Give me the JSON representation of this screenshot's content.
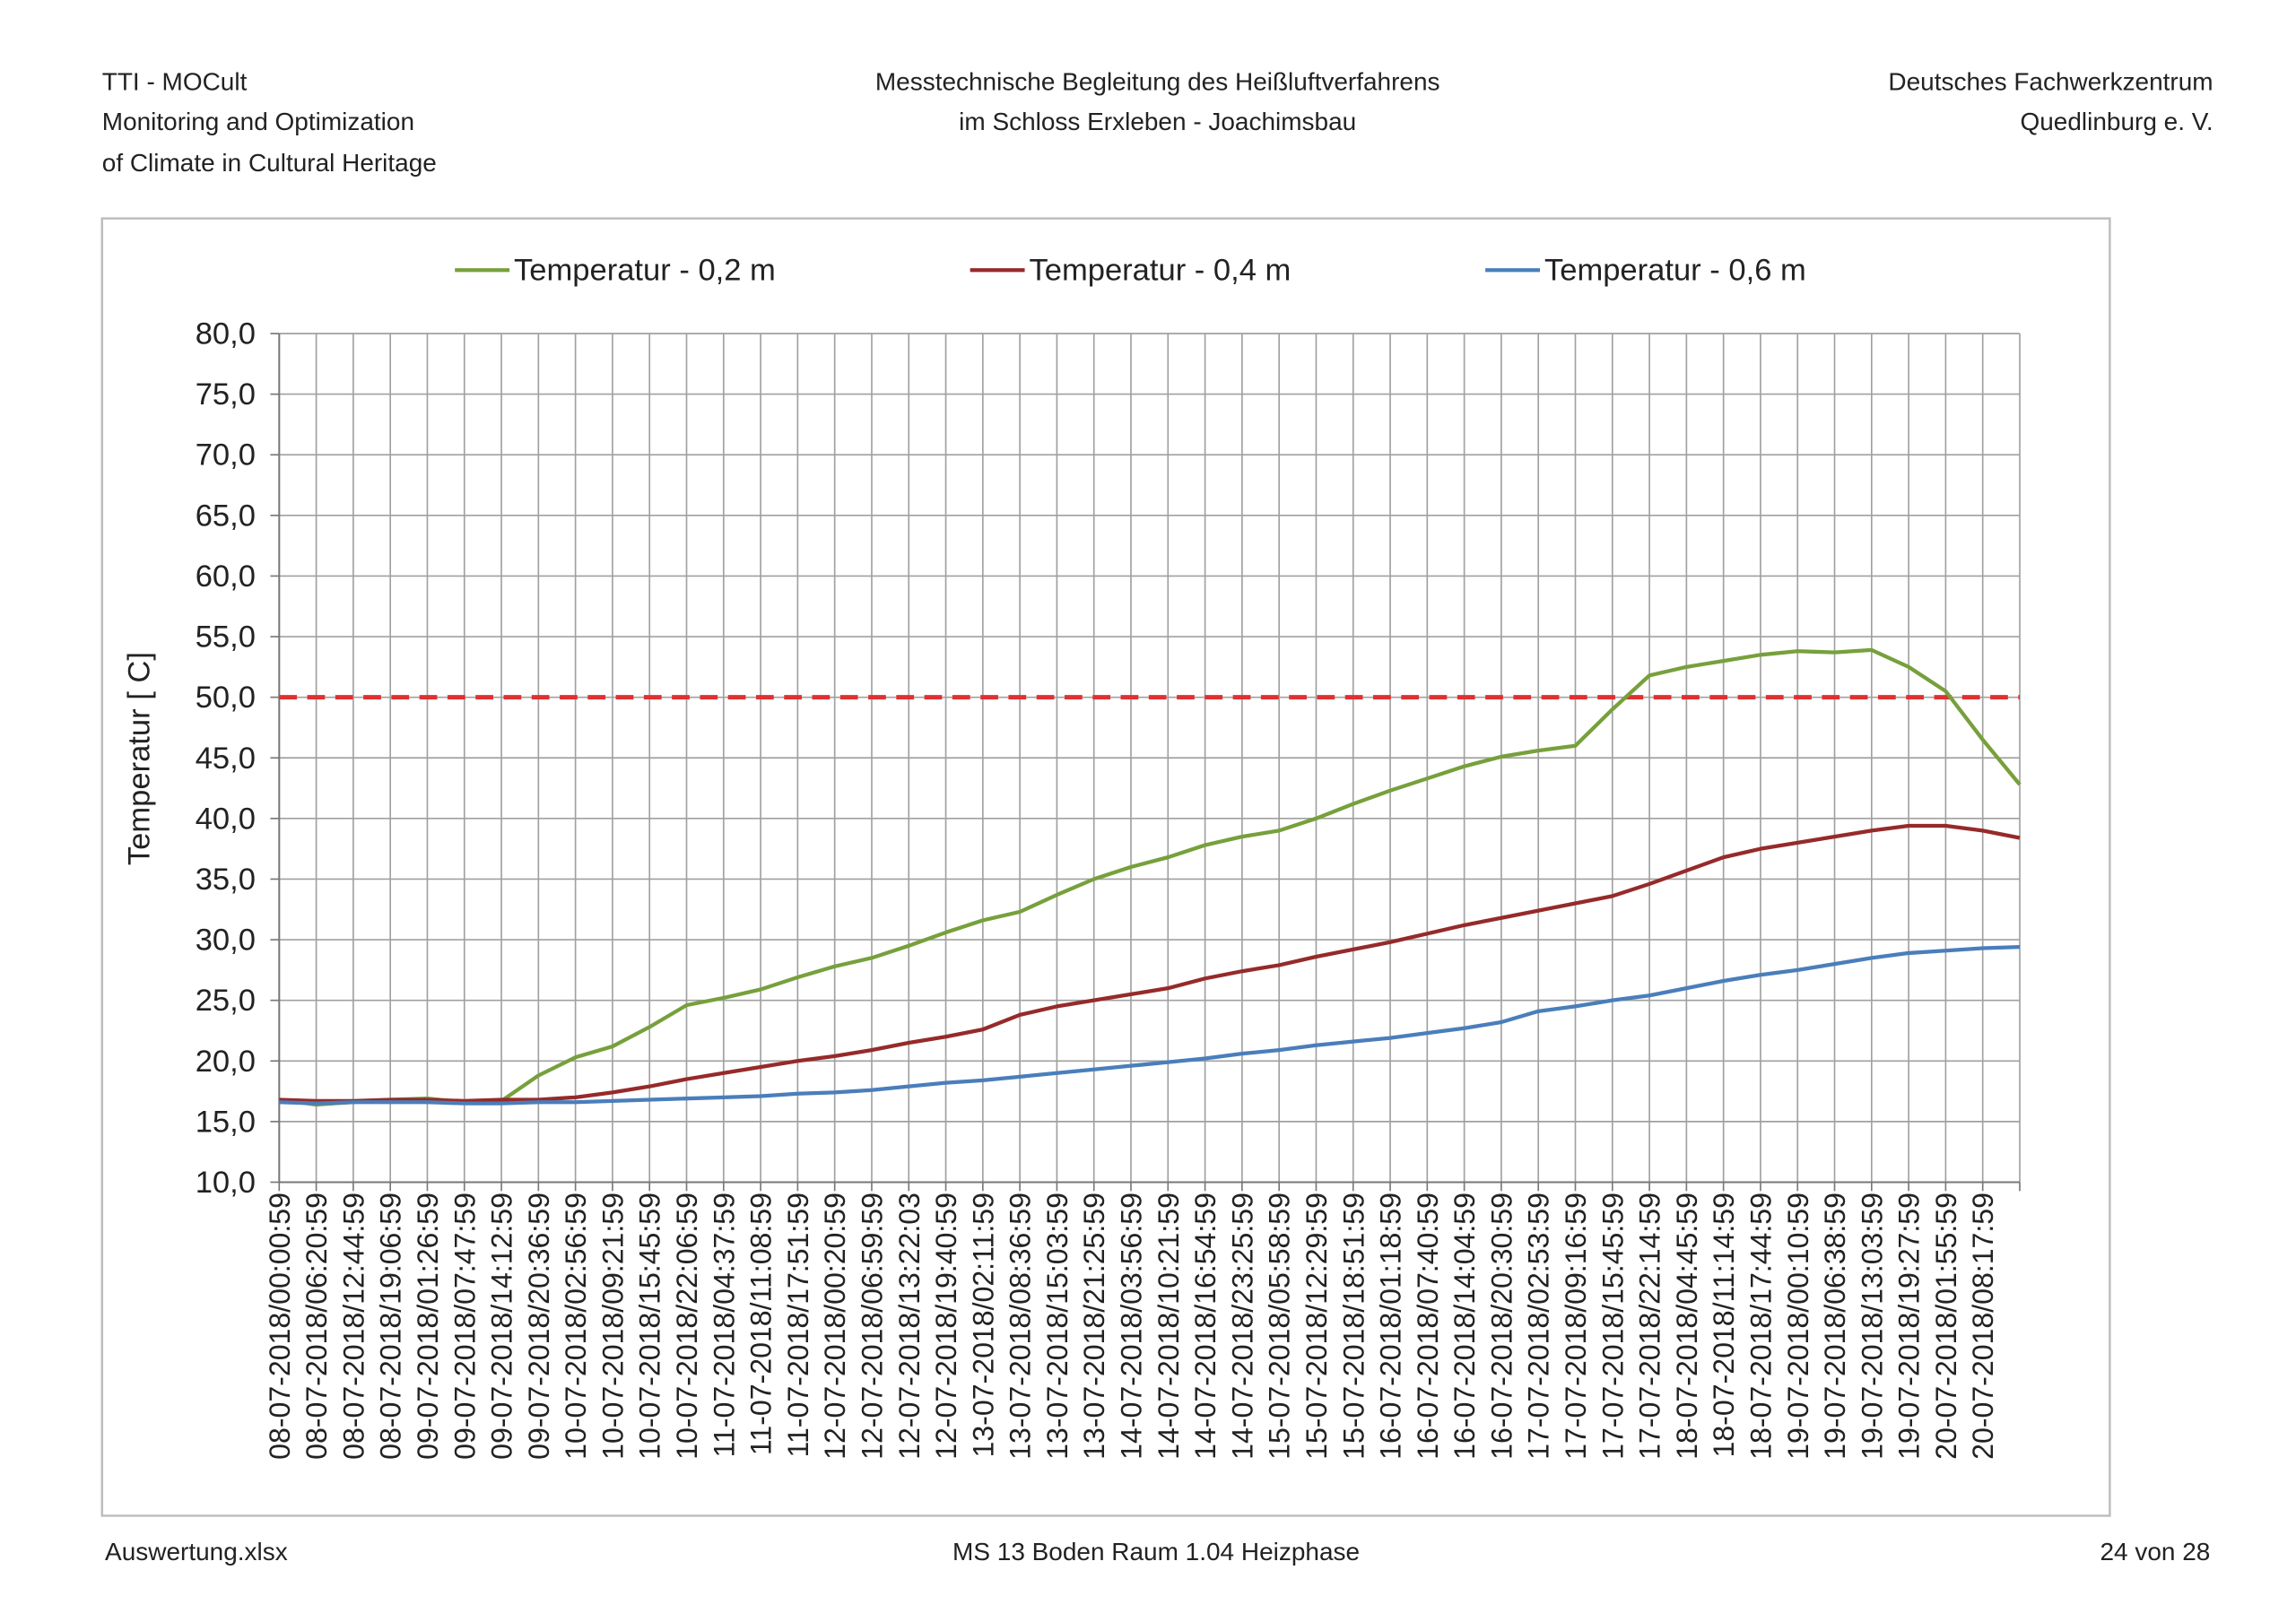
{
  "header": {
    "left": [
      "TTI - MOCult",
      "Monitoring and Optimization",
      "of Climate in Cultural Heritage"
    ],
    "center": [
      "Messtechnische Begleitung  des Heißluftverfahrens",
      "im Schloss Erxleben - Joachimsbau"
    ],
    "right": [
      "Deutsches Fachwerkzentrum",
      "Quedlinburg e. V."
    ]
  },
  "footer": {
    "left": "Auswertung.xlsx",
    "center": "MS 13 Boden Raum 1.04 Heizphase",
    "right": "24 von 28"
  },
  "chart_data": {
    "type": "line",
    "y_label": "Temperatur [ C]",
    "grid": true,
    "legend": "top",
    "categories": [
      "08-07-2018/00:00:59",
      "08-07-2018/06:20:59",
      "08-07-2018/12:44:59",
      "08-07-2018/19:06:59",
      "09-07-2018/01:26:59",
      "09-07-2018/07:47:59",
      "09-07-2018/14:12:59",
      "09-07-2018/20:36:59",
      "10-07-2018/02:56:59",
      "10-07-2018/09:21:59",
      "10-07-2018/15:45:59",
      "10-07-2018/22:06:59",
      "11-07-2018/04:37:59",
      "11-07-2018/11:08:59",
      "11-07-2018/17:51:59",
      "12-07-2018/00:20:59",
      "12-07-2018/06:59:59",
      "12-07-2018/13:22:03",
      "12-07-2018/19:40:59",
      "13-07-2018/02:11:59",
      "13-07-2018/08:36:59",
      "13-07-2018/15:03:59",
      "13-07-2018/21:25:59",
      "14-07-2018/03:56:59",
      "14-07-2018/10:21:59",
      "14-07-2018/16:54:59",
      "14-07-2018/23:25:59",
      "15-07-2018/05:58:59",
      "15-07-2018/12:29:59",
      "15-07-2018/18:51:59",
      "16-07-2018/01:18:59",
      "16-07-2018/07:40:59",
      "16-07-2018/14:04:59",
      "16-07-2018/20:30:59",
      "17-07-2018/02:53:59",
      "17-07-2018/09:16:59",
      "17-07-2018/15:45:59",
      "17-07-2018/22:14:59",
      "18-07-2018/04:45:59",
      "18-07-2018/11:14:59",
      "18-07-2018/17:44:59",
      "19-07-2018/00:10:59",
      "19-07-2018/06:38:59",
      "19-07-2018/13:03:59",
      "19-07-2018/19:27:59",
      "20-07-2018/01:55:59",
      "20-07-2018/08:17:59",
      null
    ],
    "series": [
      {
        "name": "Temperatur - 0,2 m",
        "color": "#77a03c",
        "values": [
          16.8,
          16.4,
          16.6,
          16.8,
          16.9,
          16.6,
          16.7,
          18.8,
          20.3,
          21.2,
          22.8,
          24.6,
          25.2,
          25.9,
          26.9,
          27.8,
          28.5,
          29.5,
          30.6,
          31.6,
          32.3,
          33.7,
          35.0,
          36.0,
          36.8,
          37.8,
          38.5,
          39.0,
          40.0,
          41.2,
          42.3,
          43.3,
          44.3,
          45.1,
          45.6,
          46.0,
          49.0,
          51.8,
          52.5,
          53.0,
          53.5,
          53.8,
          53.7,
          53.9,
          52.5,
          50.5,
          46.5,
          42.8
        ]
      },
      {
        "name": "Temperatur - 0,4 m",
        "color": "#962a2a",
        "values": [
          16.8,
          16.7,
          16.7,
          16.8,
          16.8,
          16.7,
          16.8,
          16.8,
          17.0,
          17.4,
          17.9,
          18.5,
          19.0,
          19.5,
          20.0,
          20.4,
          20.9,
          21.5,
          22.0,
          22.6,
          23.8,
          24.5,
          25.0,
          25.5,
          26.0,
          26.8,
          27.4,
          27.9,
          28.6,
          29.2,
          29.8,
          30.5,
          31.2,
          31.8,
          32.4,
          33.0,
          33.6,
          34.6,
          35.7,
          36.8,
          37.5,
          38.0,
          38.5,
          39.0,
          39.4,
          39.4,
          39.0,
          38.4
        ]
      },
      {
        "name": "Temperatur - 0,6 m",
        "color": "#4a7ebb",
        "values": [
          16.6,
          16.5,
          16.6,
          16.6,
          16.6,
          16.5,
          16.5,
          16.6,
          16.6,
          16.7,
          16.8,
          16.9,
          17.0,
          17.1,
          17.3,
          17.4,
          17.6,
          17.9,
          18.2,
          18.4,
          18.7,
          19.0,
          19.3,
          19.6,
          19.9,
          20.2,
          20.6,
          20.9,
          21.3,
          21.6,
          21.9,
          22.3,
          22.7,
          23.2,
          24.1,
          24.5,
          25.0,
          25.4,
          26.0,
          26.6,
          27.1,
          27.5,
          28.0,
          28.5,
          28.9,
          29.1,
          29.3,
          29.4
        ]
      }
    ],
    "reference_line": {
      "value": 50,
      "color": "#e03030"
    },
    "ylim": [
      10,
      80
    ],
    "yticks": [
      {
        "value": 10,
        "label": "10,0"
      },
      {
        "value": 15,
        "label": "15,0"
      },
      {
        "value": 20,
        "label": "20,0"
      },
      {
        "value": 25,
        "label": "25,0"
      },
      {
        "value": 30,
        "label": "30,0"
      },
      {
        "value": 35,
        "label": "35,0"
      },
      {
        "value": 40,
        "label": "40,0"
      },
      {
        "value": 45,
        "label": "45,0"
      },
      {
        "value": 50,
        "label": "50,0"
      },
      {
        "value": 55,
        "label": "55,0"
      },
      {
        "value": 60,
        "label": "60,0"
      },
      {
        "value": 65,
        "label": "65,0"
      },
      {
        "value": 70,
        "label": "70,0"
      },
      {
        "value": 75,
        "label": "75,0"
      },
      {
        "value": 80,
        "label": "80,0"
      }
    ]
  }
}
